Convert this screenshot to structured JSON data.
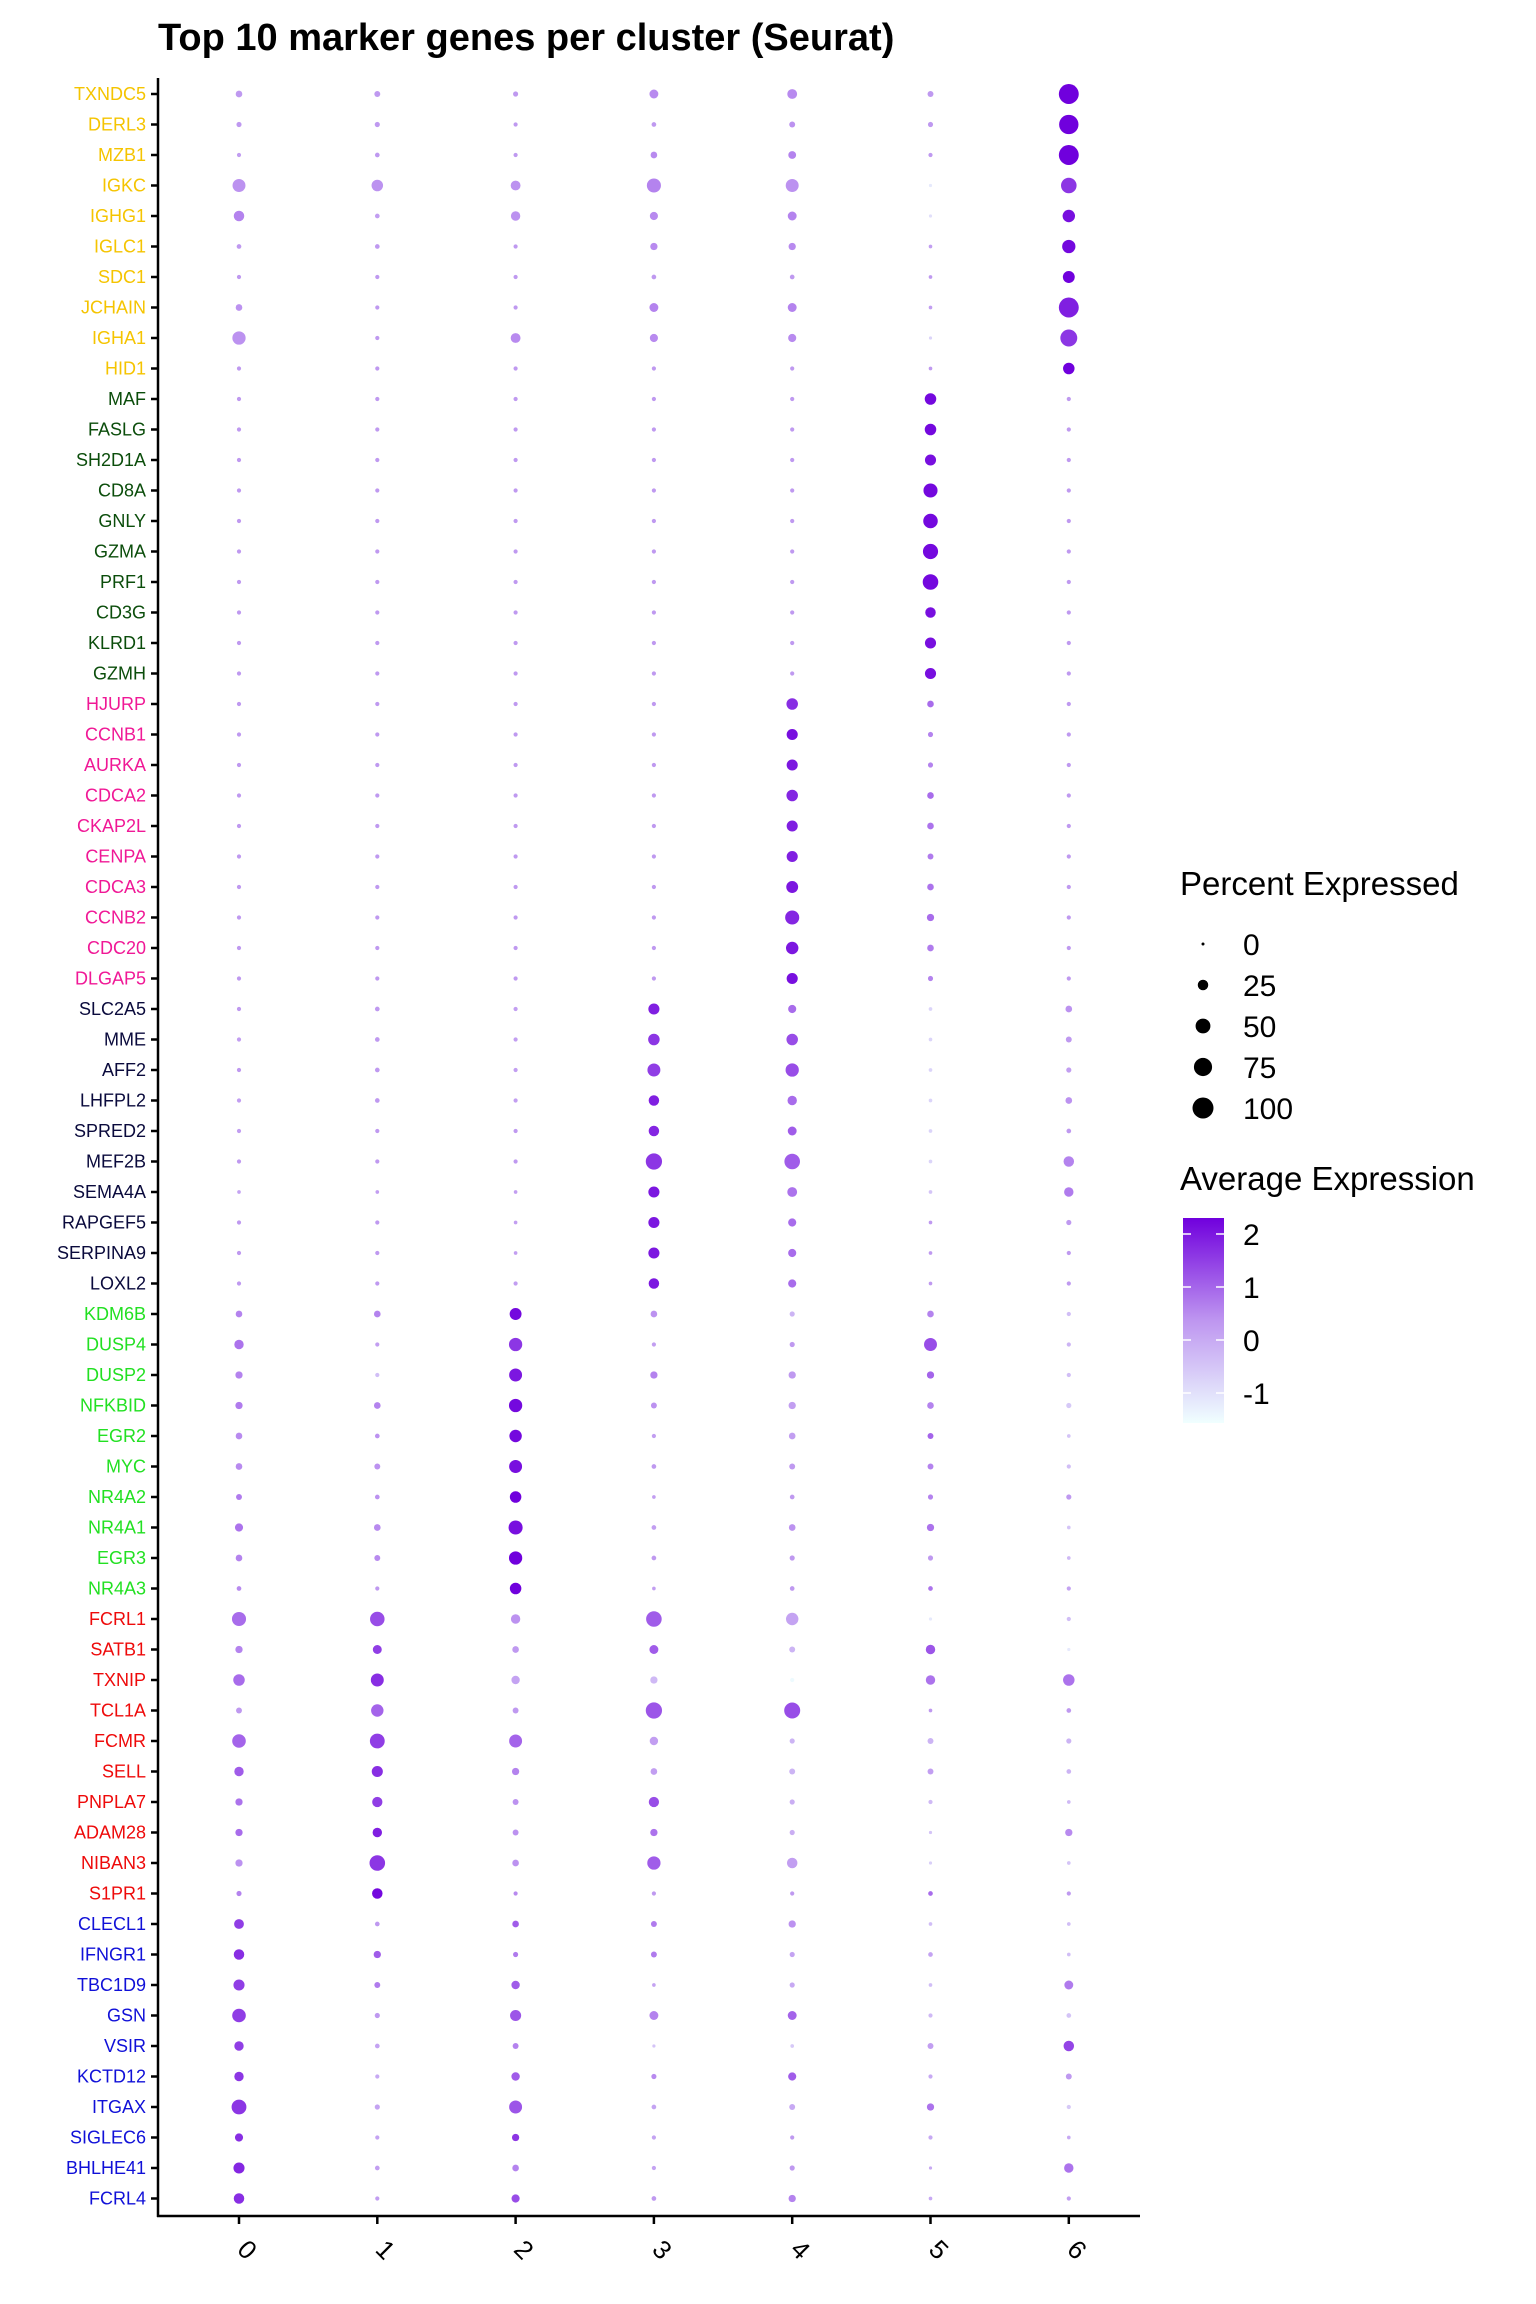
{
  "chart_data": {
    "type": "scatter",
    "subtype": "dotplot",
    "title": "Top 10 marker genes per cluster (Seurat)",
    "xlabel": "",
    "ylabel": "",
    "x": [
      "0",
      "1",
      "2",
      "3",
      "4",
      "5",
      "6"
    ],
    "grid": false,
    "gene_groups": [
      {
        "cluster": "6",
        "color": "#F5C400",
        "genes": [
          "TXNDC5",
          "DERL3",
          "MZB1",
          "IGKC",
          "IGHG1",
          "IGLC1",
          "SDC1",
          "JCHAIN",
          "IGHA1",
          "HID1"
        ]
      },
      {
        "cluster": "5",
        "color": "#0B4D0B",
        "genes": [
          "MAF",
          "FASLG",
          "SH2D1A",
          "CD8A",
          "GNLY",
          "GZMA",
          "PRF1",
          "CD3G",
          "KLRD1",
          "GZMH"
        ]
      },
      {
        "cluster": "4",
        "color": "#F01896",
        "genes": [
          "HJURP",
          "CCNB1",
          "AURKA",
          "CDCA2",
          "CKAP2L",
          "CENPA",
          "CDCA3",
          "CCNB2",
          "CDC20",
          "DLGAP5"
        ]
      },
      {
        "cluster": "3",
        "color": "#0A0A3C",
        "genes": [
          "SLC2A5",
          "MME",
          "AFF2",
          "LHFPL2",
          "SPRED2",
          "MEF2B",
          "SEMA4A",
          "RAPGEF5",
          "SERPINA9",
          "LOXL2"
        ]
      },
      {
        "cluster": "2",
        "color": "#22E022",
        "genes": [
          "KDM6B",
          "DUSP4",
          "DUSP2",
          "NFKBID",
          "EGR2",
          "MYC",
          "NR4A2",
          "NR4A1",
          "EGR3",
          "NR4A3"
        ]
      },
      {
        "cluster": "1",
        "color": "#EE0A0A",
        "genes": [
          "FCRL1",
          "SATB1",
          "TXNIP",
          "TCL1A",
          "FCMR",
          "SELL",
          "PNPLA7",
          "ADAM28",
          "NIBAN3",
          "S1PR1"
        ]
      },
      {
        "cluster": "0",
        "color": "#1010D8",
        "genes": [
          "CLECL1",
          "IFNGR1",
          "TBC1D9",
          "GSN",
          "VSIR",
          "KCTD12",
          "ITGAX",
          "SIGLEC6",
          "BHLHE41",
          "FCRL4"
        ]
      }
    ],
    "pct_expressed": [
      [
        10,
        8,
        6,
        18,
        22,
        8,
        90
      ],
      [
        6,
        6,
        4,
        5,
        8,
        6,
        85
      ],
      [
        4,
        5,
        4,
        10,
        14,
        4,
        90
      ],
      [
        38,
        30,
        22,
        45,
        38,
        2,
        55
      ],
      [
        25,
        5,
        20,
        15,
        18,
        2,
        35
      ],
      [
        5,
        5,
        4,
        12,
        12,
        3,
        40
      ],
      [
        4,
        4,
        4,
        5,
        5,
        3,
        32
      ],
      [
        10,
        4,
        4,
        18,
        18,
        3,
        90
      ],
      [
        40,
        4,
        22,
        15,
        15,
        2,
        65
      ],
      [
        4,
        4,
        4,
        4,
        4,
        3,
        30
      ],
      [
        4,
        4,
        4,
        4,
        4,
        30,
        4
      ],
      [
        4,
        4,
        4,
        4,
        4,
        30,
        4
      ],
      [
        4,
        4,
        4,
        4,
        4,
        28,
        4
      ],
      [
        4,
        4,
        4,
        4,
        4,
        45,
        4
      ],
      [
        4,
        4,
        4,
        4,
        4,
        48,
        4
      ],
      [
        4,
        4,
        4,
        4,
        4,
        52,
        4
      ],
      [
        4,
        4,
        4,
        4,
        4,
        55,
        4
      ],
      [
        4,
        4,
        4,
        4,
        4,
        25,
        4
      ],
      [
        4,
        4,
        4,
        4,
        4,
        28,
        4
      ],
      [
        4,
        4,
        4,
        4,
        4,
        28,
        4
      ],
      [
        4,
        4,
        4,
        4,
        30,
        10,
        4
      ],
      [
        4,
        4,
        4,
        4,
        28,
        6,
        4
      ],
      [
        4,
        4,
        4,
        4,
        28,
        6,
        4
      ],
      [
        4,
        4,
        4,
        4,
        30,
        10,
        4
      ],
      [
        4,
        4,
        4,
        4,
        28,
        10,
        4
      ],
      [
        4,
        4,
        4,
        4,
        28,
        8,
        4
      ],
      [
        4,
        4,
        4,
        4,
        32,
        10,
        4
      ],
      [
        4,
        4,
        4,
        4,
        45,
        12,
        4
      ],
      [
        4,
        4,
        4,
        4,
        35,
        10,
        4
      ],
      [
        4,
        4,
        4,
        4,
        28,
        6,
        4
      ],
      [
        4,
        5,
        4,
        28,
        15,
        3,
        10
      ],
      [
        4,
        5,
        4,
        30,
        30,
        3,
        8
      ],
      [
        4,
        5,
        4,
        38,
        40,
        3,
        6
      ],
      [
        4,
        5,
        4,
        25,
        20,
        3,
        10
      ],
      [
        4,
        4,
        4,
        25,
        18,
        3,
        5
      ],
      [
        4,
        4,
        4,
        60,
        55,
        3,
        25
      ],
      [
        3,
        3,
        3,
        28,
        22,
        3,
        20
      ],
      [
        4,
        4,
        3,
        28,
        15,
        3,
        6
      ],
      [
        4,
        4,
        3,
        28,
        15,
        3,
        4
      ],
      [
        4,
        4,
        4,
        25,
        15,
        3,
        4
      ],
      [
        10,
        10,
        32,
        10,
        6,
        10,
        4
      ],
      [
        20,
        4,
        40,
        4,
        6,
        38,
        4
      ],
      [
        12,
        4,
        38,
        12,
        12,
        12,
        4
      ],
      [
        12,
        10,
        40,
        8,
        12,
        10,
        6
      ],
      [
        10,
        5,
        35,
        4,
        10,
        8,
        3
      ],
      [
        10,
        8,
        38,
        5,
        8,
        8,
        4
      ],
      [
        8,
        5,
        30,
        3,
        5,
        6,
        6
      ],
      [
        15,
        10,
        45,
        5,
        10,
        12,
        3
      ],
      [
        10,
        8,
        40,
        5,
        6,
        6,
        3
      ],
      [
        5,
        4,
        30,
        3,
        5,
        5,
        4
      ],
      [
        45,
        48,
        20,
        55,
        35,
        2,
        4
      ],
      [
        12,
        18,
        10,
        18,
        8,
        20,
        2
      ],
      [
        30,
        38,
        16,
        12,
        4,
        20,
        30
      ],
      [
        8,
        35,
        8,
        60,
        58,
        3,
        5
      ],
      [
        42,
        50,
        38,
        16,
        6,
        8,
        6
      ],
      [
        20,
        28,
        12,
        10,
        8,
        8,
        5
      ],
      [
        12,
        24,
        8,
        24,
        6,
        4,
        3
      ],
      [
        12,
        20,
        8,
        12,
        6,
        2,
        12
      ],
      [
        12,
        55,
        10,
        40,
        25,
        2,
        3
      ],
      [
        6,
        25,
        4,
        4,
        4,
        5,
        4
      ],
      [
        22,
        5,
        10,
        8,
        12,
        3,
        3
      ],
      [
        25,
        12,
        6,
        8,
        6,
        5,
        3
      ],
      [
        28,
        8,
        16,
        3,
        6,
        3,
        18
      ],
      [
        42,
        6,
        28,
        18,
        18,
        4,
        5
      ],
      [
        20,
        5,
        8,
        2,
        3,
        8,
        25
      ],
      [
        20,
        4,
        16,
        6,
        15,
        4,
        8
      ],
      [
        50,
        6,
        38,
        5,
        8,
        12,
        4
      ],
      [
        15,
        4,
        12,
        4,
        4,
        4,
        3
      ],
      [
        28,
        5,
        10,
        4,
        6,
        2,
        20
      ],
      [
        25,
        4,
        15,
        5,
        12,
        3,
        4
      ]
    ],
    "avg_expression": [
      [
        0.3,
        0.3,
        0.3,
        0.5,
        0.5,
        0.3,
        2.3
      ],
      [
        0.3,
        0.3,
        0.3,
        0.3,
        0.4,
        0.3,
        2.3
      ],
      [
        0.2,
        0.3,
        0.3,
        0.5,
        0.6,
        0.3,
        2.3
      ],
      [
        0.4,
        0.4,
        0.4,
        0.6,
        0.4,
        -1.2,
        1.6
      ],
      [
        0.6,
        0.2,
        0.4,
        0.5,
        0.6,
        -1.0,
        2.1
      ],
      [
        0.3,
        0.3,
        0.3,
        0.5,
        0.5,
        0.2,
        2.2
      ],
      [
        0.3,
        0.3,
        0.3,
        0.3,
        0.3,
        0.3,
        2.3
      ],
      [
        0.4,
        0.3,
        0.3,
        0.6,
        0.6,
        0.2,
        1.9
      ],
      [
        0.4,
        0.3,
        0.5,
        0.5,
        0.5,
        -0.8,
        1.6
      ],
      [
        0.3,
        0.3,
        0.3,
        0.3,
        0.3,
        0.3,
        2.3
      ],
      [
        0.3,
        0.3,
        0.3,
        0.3,
        0.3,
        2.2,
        0.3
      ],
      [
        0.3,
        0.3,
        0.3,
        0.3,
        0.3,
        2.2,
        0.3
      ],
      [
        0.3,
        0.3,
        0.3,
        0.3,
        0.3,
        2.1,
        0.3
      ],
      [
        0.3,
        0.3,
        0.3,
        0.3,
        0.3,
        2.2,
        0.3
      ],
      [
        0.3,
        0.3,
        0.3,
        0.3,
        0.3,
        2.2,
        0.3
      ],
      [
        0.3,
        0.3,
        0.3,
        0.3,
        0.3,
        2.2,
        0.3
      ],
      [
        0.3,
        0.3,
        0.3,
        0.3,
        0.3,
        2.2,
        0.3
      ],
      [
        0.3,
        0.3,
        0.3,
        0.3,
        0.3,
        2.1,
        0.3
      ],
      [
        0.3,
        0.3,
        0.3,
        0.3,
        0.3,
        2.1,
        0.3
      ],
      [
        0.3,
        0.3,
        0.3,
        0.3,
        0.3,
        2.1,
        0.3
      ],
      [
        0.3,
        0.3,
        0.3,
        0.3,
        1.7,
        0.9,
        0.3
      ],
      [
        0.3,
        0.3,
        0.3,
        0.3,
        2.1,
        0.6,
        0.3
      ],
      [
        0.3,
        0.3,
        0.3,
        0.3,
        2.0,
        0.6,
        0.3
      ],
      [
        0.3,
        0.3,
        0.3,
        0.3,
        1.8,
        0.9,
        0.3
      ],
      [
        0.3,
        0.3,
        0.3,
        0.3,
        1.9,
        0.8,
        0.3
      ],
      [
        0.3,
        0.3,
        0.3,
        0.3,
        1.9,
        0.7,
        0.3
      ],
      [
        0.3,
        0.3,
        0.3,
        0.3,
        2.0,
        0.8,
        0.3
      ],
      [
        0.3,
        0.3,
        0.3,
        0.3,
        1.8,
        0.9,
        0.3
      ],
      [
        0.3,
        0.3,
        0.3,
        0.3,
        2.0,
        0.7,
        0.3
      ],
      [
        0.3,
        0.3,
        0.3,
        0.3,
        2.1,
        0.6,
        0.3
      ],
      [
        0.3,
        0.3,
        0.2,
        1.9,
        0.9,
        -0.8,
        0.4
      ],
      [
        0.2,
        0.3,
        0.2,
        1.6,
        1.3,
        -0.8,
        0.3
      ],
      [
        0.3,
        0.3,
        0.2,
        1.5,
        1.3,
        -0.8,
        0.2
      ],
      [
        0.2,
        0.3,
        0.2,
        1.9,
        0.9,
        -0.8,
        0.4
      ],
      [
        0.2,
        0.3,
        0.3,
        1.8,
        1.1,
        -0.8,
        0.3
      ],
      [
        0.3,
        0.3,
        0.3,
        1.6,
        1.1,
        -0.8,
        0.6
      ],
      [
        0.1,
        0.2,
        0.2,
        2.0,
        0.8,
        -0.5,
        0.7
      ],
      [
        0.3,
        0.3,
        0.2,
        2.0,
        0.9,
        0.3,
        0.3
      ],
      [
        0.3,
        0.3,
        0.2,
        2.0,
        0.9,
        0.3,
        0.3
      ],
      [
        0.3,
        0.3,
        0.2,
        2.0,
        0.9,
        0.3,
        0.3
      ],
      [
        0.6,
        0.6,
        2.2,
        0.4,
        -0.2,
        0.6,
        -0.4
      ],
      [
        0.8,
        0.2,
        1.6,
        0.2,
        0.3,
        1.3,
        -0.2
      ],
      [
        0.6,
        -0.4,
        2.0,
        0.6,
        0.3,
        1.0,
        -0.4
      ],
      [
        0.7,
        0.6,
        2.2,
        0.4,
        0.2,
        0.6,
        -0.6
      ],
      [
        0.5,
        0.4,
        2.2,
        0.2,
        0.2,
        1.0,
        -0.5
      ],
      [
        0.5,
        0.4,
        2.1,
        0.3,
        0.3,
        0.6,
        -0.4
      ],
      [
        0.7,
        0.4,
        2.3,
        0.2,
        0.3,
        0.6,
        0.3
      ],
      [
        0.8,
        0.5,
        2.1,
        0.2,
        0.4,
        0.8,
        -0.5
      ],
      [
        0.6,
        0.5,
        2.3,
        0.3,
        0.3,
        0.3,
        -0.3
      ],
      [
        0.5,
        0.3,
        2.3,
        0.2,
        0.3,
        0.8,
        0.1
      ],
      [
        0.9,
        1.3,
        0.4,
        1.1,
        0.1,
        -1.2,
        -0.4
      ],
      [
        0.6,
        1.5,
        0.3,
        1.1,
        -0.2,
        1.2,
        -1.2
      ],
      [
        0.9,
        1.7,
        0.1,
        -0.3,
        -1.5,
        0.8,
        0.8
      ],
      [
        0.3,
        1.0,
        0.3,
        1.2,
        1.3,
        0.3,
        0.3
      ],
      [
        1.0,
        1.5,
        1.0,
        0.2,
        -0.2,
        -0.2,
        -0.2
      ],
      [
        1.1,
        1.7,
        0.6,
        0.2,
        -0.2,
        0.2,
        -0.2
      ],
      [
        0.8,
        1.5,
        0.4,
        1.3,
        -0.1,
        -0.3,
        -0.3
      ],
      [
        0.9,
        1.9,
        0.4,
        0.8,
        -0.1,
        -0.5,
        0.5
      ],
      [
        0.4,
        1.6,
        0.4,
        1.1,
        0.2,
        -0.7,
        -0.5
      ],
      [
        0.6,
        2.2,
        0.5,
        0.3,
        0.3,
        0.9,
        0.3
      ],
      [
        1.5,
        0.3,
        1.1,
        0.7,
        0.4,
        -0.4,
        -0.4
      ],
      [
        1.7,
        1.1,
        0.7,
        0.7,
        0.1,
        0.1,
        -0.4
      ],
      [
        1.5,
        0.7,
        1.1,
        0.1,
        0.0,
        -0.4,
        0.7
      ],
      [
        1.5,
        0.3,
        1.2,
        0.6,
        1.0,
        -0.3,
        -0.5
      ],
      [
        1.5,
        0.1,
        0.6,
        -0.5,
        -0.6,
        0.2,
        1.4
      ],
      [
        1.6,
        0.0,
        1.1,
        0.5,
        1.1,
        0.0,
        0.3
      ],
      [
        1.6,
        0.1,
        1.2,
        0.1,
        0.0,
        0.8,
        -0.6
      ],
      [
        1.7,
        0.1,
        1.6,
        0.1,
        0.3,
        0.0,
        0.0
      ],
      [
        1.8,
        0.2,
        0.6,
        0.1,
        0.3,
        0.0,
        0.8
      ],
      [
        1.7,
        0.2,
        1.3,
        0.3,
        0.6,
        0.0,
        0.2
      ]
    ],
    "size_legend": {
      "title": "Percent Expressed",
      "values": [
        0,
        25,
        50,
        75,
        100
      ],
      "labels": [
        "0",
        "25",
        "50",
        "75",
        "100"
      ]
    },
    "color_legend": {
      "title": "Average Expression",
      "ticks": [
        "2",
        "1",
        "0",
        "-1"
      ],
      "range": [
        -1.6,
        2.3
      ],
      "low_color": "#F0FFFF",
      "high_color": "#7000DD"
    },
    "legend_position": "right"
  }
}
